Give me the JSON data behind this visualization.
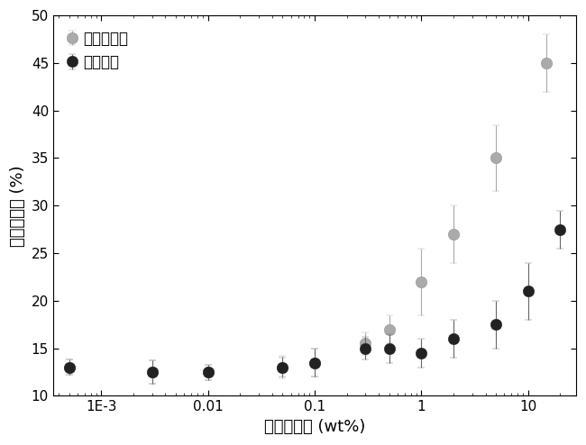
{
  "series1_name": "羟基喜树碱",
  "series2_name": "拓扑替康",
  "series1_color": "#aaaaaa",
  "series2_color": "#222222",
  "series1_ecolor": "#aaaaaa",
  "series2_ecolor": "#666666",
  "series1_x": [
    0.0005,
    0.003,
    0.01,
    0.05,
    0.1,
    0.3,
    0.5,
    1.0,
    2.0,
    5.0,
    15.0
  ],
  "series1_y": [
    13.0,
    12.5,
    12.5,
    13.0,
    13.5,
    15.5,
    17.0,
    22.0,
    27.0,
    35.0,
    45.0
  ],
  "series1_yerr": [
    0.8,
    1.2,
    0.8,
    1.2,
    1.5,
    1.2,
    1.5,
    3.5,
    3.0,
    3.5,
    3.0
  ],
  "series2_x": [
    0.0005,
    0.003,
    0.01,
    0.05,
    0.1,
    0.3,
    0.5,
    1.0,
    2.0,
    5.0,
    10.0,
    20.0
  ],
  "series2_y": [
    13.0,
    12.5,
    12.5,
    13.0,
    13.5,
    15.0,
    15.0,
    14.5,
    16.0,
    17.5,
    21.0,
    27.5
  ],
  "series2_yerr": [
    0.8,
    1.2,
    0.8,
    1.0,
    1.5,
    1.2,
    1.5,
    1.5,
    2.0,
    2.5,
    3.0,
    2.0
  ],
  "xlabel": "聚合物浓度 (wt%)",
  "ylabel": "活性闭环率 (%)",
  "ylim": [
    10,
    50
  ],
  "yticks": [
    10,
    15,
    20,
    25,
    30,
    35,
    40,
    45,
    50
  ],
  "background_color": "#ffffff",
  "marker_size": 9,
  "capsize": 3,
  "elinewidth": 0.8,
  "legend_fontsize": 12,
  "axis_fontsize": 13
}
